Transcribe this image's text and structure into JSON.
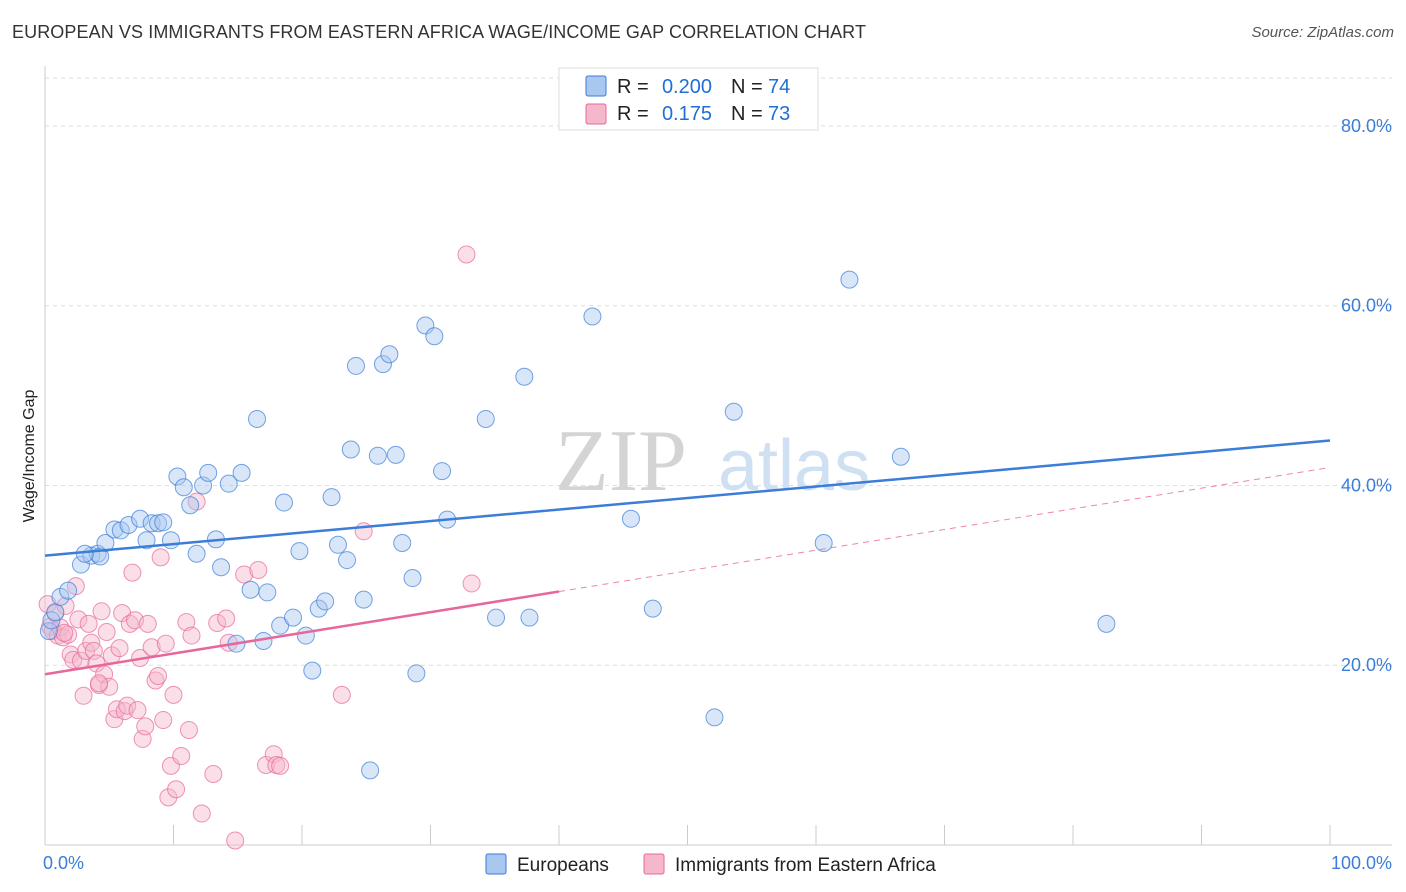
{
  "title": "EUROPEAN VS IMMIGRANTS FROM EASTERN AFRICA WAGE/INCOME GAP CORRELATION CHART",
  "source": "Source: ZipAtlas.com",
  "watermark": {
    "zip": "ZIP",
    "atlas": "atlas"
  },
  "colors": {
    "blue": "#3b7dd8",
    "blue_fill": "#a9c8f0",
    "pink": "#e8679a",
    "pink_fill": "#f4b7cc",
    "grid": "#dddddd"
  },
  "legend": {
    "r_label": "R =",
    "n_label": "N =",
    "series": [
      {
        "r": "0.200",
        "n": "74"
      },
      {
        "r": "0.175",
        "n": "73"
      }
    ]
  },
  "chart_data": {
    "type": "scatter",
    "ylabel": "Wage/Income Gap",
    "xlim": [
      0,
      100
    ],
    "ylim": [
      0,
      86
    ],
    "x_tick_labels": [
      "0.0%",
      "100.0%"
    ],
    "y_ticks": [
      20,
      40,
      60,
      80
    ],
    "y_tick_labels": [
      "20.0%",
      "40.0%",
      "60.0%",
      "80.0%"
    ],
    "grid": true,
    "legend_position": "top-center",
    "series": [
      {
        "name": "Europeans",
        "color": "#3b7dd8",
        "trend": {
          "x": [
            0,
            100
          ],
          "y": [
            32.2,
            45.0
          ],
          "dashed_from": null
        },
        "points": [
          [
            0.3,
            23.8
          ],
          [
            0.5,
            25.0
          ],
          [
            0.8,
            25.9
          ],
          [
            1.2,
            27.6
          ],
          [
            1.8,
            28.3
          ],
          [
            2.8,
            31.2
          ],
          [
            3.6,
            32.2
          ],
          [
            4.1,
            32.4
          ],
          [
            4.3,
            32.1
          ],
          [
            4.7,
            33.6
          ],
          [
            5.4,
            35.1
          ],
          [
            5.9,
            35.0
          ],
          [
            6.5,
            35.6
          ],
          [
            7.4,
            36.3
          ],
          [
            7.9,
            33.9
          ],
          [
            8.3,
            35.8
          ],
          [
            8.8,
            35.8
          ],
          [
            9.2,
            35.9
          ],
          [
            9.8,
            33.9
          ],
          [
            10.3,
            41.0
          ],
          [
            10.8,
            39.8
          ],
          [
            11.3,
            37.8
          ],
          [
            11.8,
            32.4
          ],
          [
            12.3,
            40.0
          ],
          [
            12.7,
            41.4
          ],
          [
            13.3,
            34.0
          ],
          [
            13.7,
            30.9
          ],
          [
            14.3,
            40.2
          ],
          [
            14.9,
            22.4
          ],
          [
            15.3,
            41.4
          ],
          [
            16.0,
            28.4
          ],
          [
            16.5,
            47.4
          ],
          [
            17.0,
            22.7
          ],
          [
            17.3,
            28.1
          ],
          [
            18.3,
            24.4
          ],
          [
            18.6,
            38.1
          ],
          [
            19.3,
            25.3
          ],
          [
            19.8,
            32.7
          ],
          [
            20.3,
            23.3
          ],
          [
            20.8,
            19.4
          ],
          [
            21.3,
            26.3
          ],
          [
            21.8,
            27.1
          ],
          [
            22.3,
            38.7
          ],
          [
            22.8,
            33.4
          ],
          [
            23.5,
            31.7
          ],
          [
            23.8,
            44.0
          ],
          [
            24.2,
            53.3
          ],
          [
            24.8,
            27.3
          ],
          [
            25.3,
            8.3
          ],
          [
            25.9,
            43.3
          ],
          [
            26.3,
            53.5
          ],
          [
            26.8,
            54.6
          ],
          [
            27.3,
            43.4
          ],
          [
            27.8,
            33.6
          ],
          [
            28.6,
            29.7
          ],
          [
            28.9,
            19.1
          ],
          [
            29.6,
            57.8
          ],
          [
            30.3,
            56.6
          ],
          [
            30.9,
            41.6
          ],
          [
            31.3,
            36.2
          ],
          [
            34.3,
            47.4
          ],
          [
            35.1,
            25.3
          ],
          [
            37.3,
            52.1
          ],
          [
            37.7,
            25.3
          ],
          [
            42.6,
            58.8
          ],
          [
            45.6,
            36.3
          ],
          [
            47.3,
            26.3
          ],
          [
            52.1,
            14.2
          ],
          [
            53.6,
            48.2
          ],
          [
            60.6,
            33.6
          ],
          [
            62.6,
            62.9
          ],
          [
            66.6,
            43.2
          ],
          [
            82.6,
            24.6
          ],
          [
            3.1,
            32.4
          ]
        ]
      },
      {
        "name": "Immigrants from Eastern Africa",
        "color": "#e8679a",
        "trend": {
          "x": [
            0,
            100
          ],
          "y": [
            19.0,
            42.0
          ],
          "dashed_from": 40
        },
        "points": [
          [
            0.2,
            26.8
          ],
          [
            0.4,
            24.3
          ],
          [
            0.6,
            23.8
          ],
          [
            0.8,
            25.8
          ],
          [
            1.0,
            23.3
          ],
          [
            1.2,
            24.2
          ],
          [
            1.4,
            23.1
          ],
          [
            1.6,
            26.6
          ],
          [
            1.8,
            23.4
          ],
          [
            2.0,
            21.2
          ],
          [
            2.2,
            20.6
          ],
          [
            2.4,
            28.8
          ],
          [
            2.6,
            25.1
          ],
          [
            2.8,
            20.5
          ],
          [
            3.0,
            16.6
          ],
          [
            3.2,
            21.6
          ],
          [
            3.4,
            24.6
          ],
          [
            3.6,
            22.5
          ],
          [
            3.8,
            21.6
          ],
          [
            4.0,
            20.2
          ],
          [
            4.2,
            17.8
          ],
          [
            4.4,
            26.0
          ],
          [
            4.6,
            19.0
          ],
          [
            4.8,
            23.7
          ],
          [
            5.0,
            17.6
          ],
          [
            5.2,
            21.1
          ],
          [
            5.4,
            14.0
          ],
          [
            5.6,
            15.1
          ],
          [
            5.8,
            21.9
          ],
          [
            6.0,
            25.8
          ],
          [
            6.2,
            14.9
          ],
          [
            6.4,
            15.5
          ],
          [
            6.6,
            24.6
          ],
          [
            6.8,
            30.3
          ],
          [
            7.0,
            25.0
          ],
          [
            7.2,
            15.0
          ],
          [
            7.4,
            20.8
          ],
          [
            7.6,
            11.8
          ],
          [
            7.8,
            13.2
          ],
          [
            8.0,
            24.6
          ],
          [
            8.3,
            22.0
          ],
          [
            8.6,
            18.3
          ],
          [
            8.8,
            18.8
          ],
          [
            9.0,
            32.0
          ],
          [
            9.2,
            13.9
          ],
          [
            9.4,
            22.4
          ],
          [
            9.6,
            5.3
          ],
          [
            9.8,
            8.8
          ],
          [
            10.0,
            16.7
          ],
          [
            10.2,
            6.2
          ],
          [
            10.6,
            9.9
          ],
          [
            11.0,
            24.8
          ],
          [
            11.2,
            12.8
          ],
          [
            11.4,
            23.3
          ],
          [
            11.8,
            38.2
          ],
          [
            12.2,
            3.5
          ],
          [
            13.1,
            7.9
          ],
          [
            13.4,
            24.7
          ],
          [
            14.1,
            25.2
          ],
          [
            14.3,
            22.5
          ],
          [
            14.8,
            0.5
          ],
          [
            15.5,
            30.1
          ],
          [
            16.6,
            30.6
          ],
          [
            17.2,
            8.9
          ],
          [
            17.8,
            10.1
          ],
          [
            18.0,
            8.9
          ],
          [
            18.3,
            8.8
          ],
          [
            23.1,
            16.7
          ],
          [
            24.8,
            34.9
          ],
          [
            32.8,
            65.7
          ],
          [
            33.2,
            29.1
          ],
          [
            1.5,
            23.6
          ],
          [
            4.2,
            18.0
          ]
        ]
      }
    ]
  }
}
